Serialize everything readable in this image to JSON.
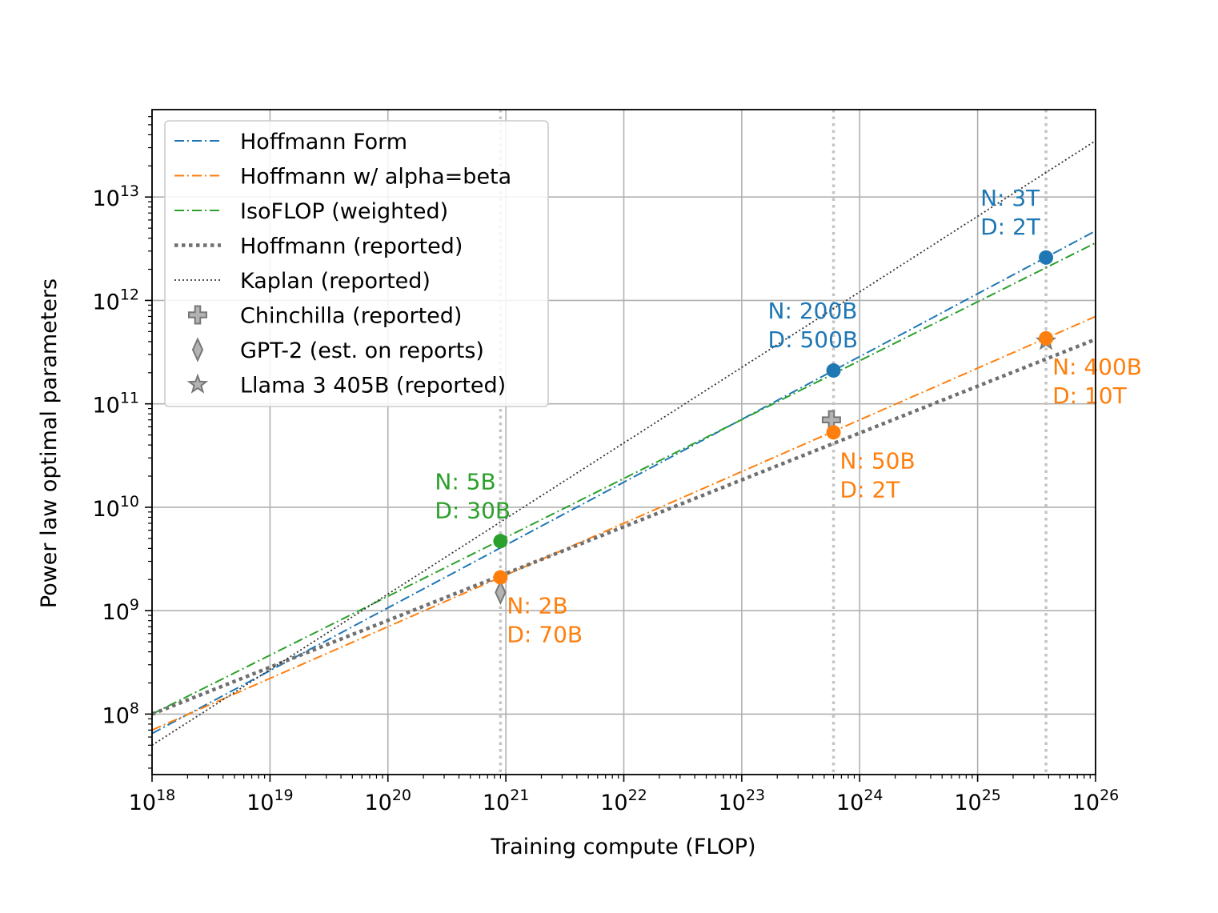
{
  "chart_data": {
    "type": "line",
    "xscale": "log",
    "yscale": "log",
    "xlabel": "Training compute (FLOP)",
    "ylabel": "Power law optimal parameters",
    "xlim": [
      1e+18,
      1e+26
    ],
    "ylim": [
      26000000.0,
      70000000000000.0
    ],
    "grid": true,
    "legend_position": "top-left",
    "x_ticks": [
      {
        "value": 1e+18,
        "base": "10",
        "exp": "18"
      },
      {
        "value": 1e+19,
        "base": "10",
        "exp": "19"
      },
      {
        "value": 1e+20,
        "base": "10",
        "exp": "20"
      },
      {
        "value": 1e+21,
        "base": "10",
        "exp": "21"
      },
      {
        "value": 1e+22,
        "base": "10",
        "exp": "22"
      },
      {
        "value": 1e+23,
        "base": "10",
        "exp": "23"
      },
      {
        "value": 1e+24,
        "base": "10",
        "exp": "24"
      },
      {
        "value": 1e+25,
        "base": "10",
        "exp": "25"
      },
      {
        "value": 1e+26,
        "base": "10",
        "exp": "26"
      }
    ],
    "y_ticks": [
      {
        "value": 100000000.0,
        "base": "10",
        "exp": "8"
      },
      {
        "value": 1000000000.0,
        "base": "10",
        "exp": "9"
      },
      {
        "value": 10000000000.0,
        "base": "10",
        "exp": "10"
      },
      {
        "value": 100000000000.0,
        "base": "10",
        "exp": "11"
      },
      {
        "value": 1000000000000.0,
        "base": "10",
        "exp": "12"
      },
      {
        "value": 10000000000000.0,
        "base": "10",
        "exp": "13"
      }
    ],
    "vlines": [
      9e+20,
      6e+23,
      3.8e+25
    ],
    "series": [
      {
        "name": "Hoffmann Form",
        "color": "#1f77b4",
        "style": "dashdot",
        "x": [
          1e+18,
          1e+26
        ],
        "y": [
          65000000.0,
          4700000000000.0
        ]
      },
      {
        "name": "Hoffmann w/ alpha=beta",
        "color": "#ff7f0e",
        "style": "dashdot",
        "x": [
          1e+18,
          1e+26
        ],
        "y": [
          70000000.0,
          700000000000.0
        ]
      },
      {
        "name": "IsoFLOP (weighted)",
        "color": "#2ca02c",
        "style": "dashdot",
        "x": [
          1e+18,
          1e+26
        ],
        "y": [
          100000000.0,
          3600000000000.0
        ]
      },
      {
        "name": "Hoffmann (reported)",
        "color": "#707070",
        "style": "dotted-thick",
        "x": [
          1e+18,
          1e+26
        ],
        "y": [
          100000000.0,
          420000000000.0
        ]
      },
      {
        "name": "Kaplan (reported)",
        "color": "#333333",
        "style": "dotted-thin",
        "x": [
          1e+18,
          1e+26
        ],
        "y": [
          50000000.0,
          35000000000000.0
        ]
      }
    ],
    "reported_markers": [
      {
        "name": "Chinchilla (reported)",
        "marker": "plus",
        "x": 5.76e+23,
        "y": 70000000000.0
      },
      {
        "name": "GPT-2 (est. on reports)",
        "marker": "diamond",
        "x": 9e+20,
        "y": 1500000000.0
      },
      {
        "name": "Llama 3 405B (reported)",
        "marker": "star",
        "x": 3.8e+25,
        "y": 405000000000.0
      }
    ],
    "points": [
      {
        "x": 9e+20,
        "y": 4700000000.0,
        "color": "#2ca02c",
        "label1": "N: 5B",
        "label2": "D: 30B",
        "anchor": "above-left"
      },
      {
        "x": 9e+20,
        "y": 2100000000.0,
        "color": "#ff7f0e",
        "label1": "N: 2B",
        "label2": "D: 70B",
        "anchor": "below-right"
      },
      {
        "x": 6e+23,
        "y": 210000000000.0,
        "color": "#1f77b4",
        "label1": "N: 200B",
        "label2": "D: 500B",
        "anchor": "above-left"
      },
      {
        "x": 6e+23,
        "y": 53000000000.0,
        "color": "#ff7f0e",
        "label1": "N: 50B",
        "label2": "D: 2T",
        "anchor": "below-right"
      },
      {
        "x": 3.8e+25,
        "y": 2600000000000.0,
        "color": "#1f77b4",
        "label1": "N: 3T",
        "label2": "D: 2T",
        "anchor": "above-left"
      },
      {
        "x": 3.8e+25,
        "y": 430000000000.0,
        "color": "#ff7f0e",
        "label1": "N: 400B",
        "label2": "D: 10T",
        "anchor": "below-right"
      }
    ],
    "legend": [
      {
        "label": "Hoffmann Form",
        "kind": "line",
        "color": "#1f77b4",
        "style": "dashdot"
      },
      {
        "label": "Hoffmann w/ alpha=beta",
        "kind": "line",
        "color": "#ff7f0e",
        "style": "dashdot"
      },
      {
        "label": "IsoFLOP (weighted)",
        "kind": "line",
        "color": "#2ca02c",
        "style": "dashdot"
      },
      {
        "label": "Hoffmann (reported)",
        "kind": "line",
        "color": "#707070",
        "style": "dotted-thick"
      },
      {
        "label": "Kaplan (reported)",
        "kind": "line",
        "color": "#333333",
        "style": "dotted-thin"
      },
      {
        "label": "Chinchilla (reported)",
        "kind": "marker",
        "marker": "plus"
      },
      {
        "label": "GPT-2 (est. on reports)",
        "kind": "marker",
        "marker": "diamond"
      },
      {
        "label": "Llama 3 405B (reported)",
        "kind": "marker",
        "marker": "star"
      }
    ]
  }
}
